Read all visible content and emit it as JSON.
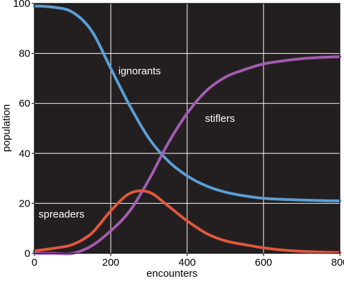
{
  "chart_data": {
    "type": "line",
    "x_label": "encounters",
    "y_label": "population",
    "x": [
      0,
      50,
      100,
      150,
      200,
      250,
      300,
      350,
      400,
      450,
      500,
      550,
      600,
      650,
      700,
      750,
      800
    ],
    "series": [
      {
        "name": "ignorants",
        "color": "#5a9fd6",
        "values": [
          99,
          98.5,
          96.5,
          89,
          74,
          59,
          46,
          37,
          31,
          27,
          24.5,
          23,
          22,
          21.6,
          21.3,
          21.1,
          21
        ]
      },
      {
        "name": "stiflers",
        "color": "#a35cb0",
        "values": [
          0,
          0,
          0,
          3,
          9,
          17,
          29.5,
          44,
          56,
          65,
          70.5,
          73.5,
          75.8,
          77,
          77.9,
          78.4,
          78.7
        ]
      },
      {
        "name": "spreaders",
        "color": "#e2573d",
        "values": [
          1,
          2,
          3.5,
          8,
          17,
          24,
          24.5,
          19,
          13,
          8,
          5,
          3.5,
          2.2,
          1.3,
          0.8,
          0.5,
          0.3
        ]
      }
    ],
    "xlim": [
      0,
      800
    ],
    "ylim": [
      0,
      100
    ],
    "xticks": [
      0,
      200,
      400,
      600,
      800
    ],
    "yticks": [
      0,
      20,
      40,
      60,
      80,
      100
    ],
    "grid": true,
    "background": "#231f20"
  }
}
